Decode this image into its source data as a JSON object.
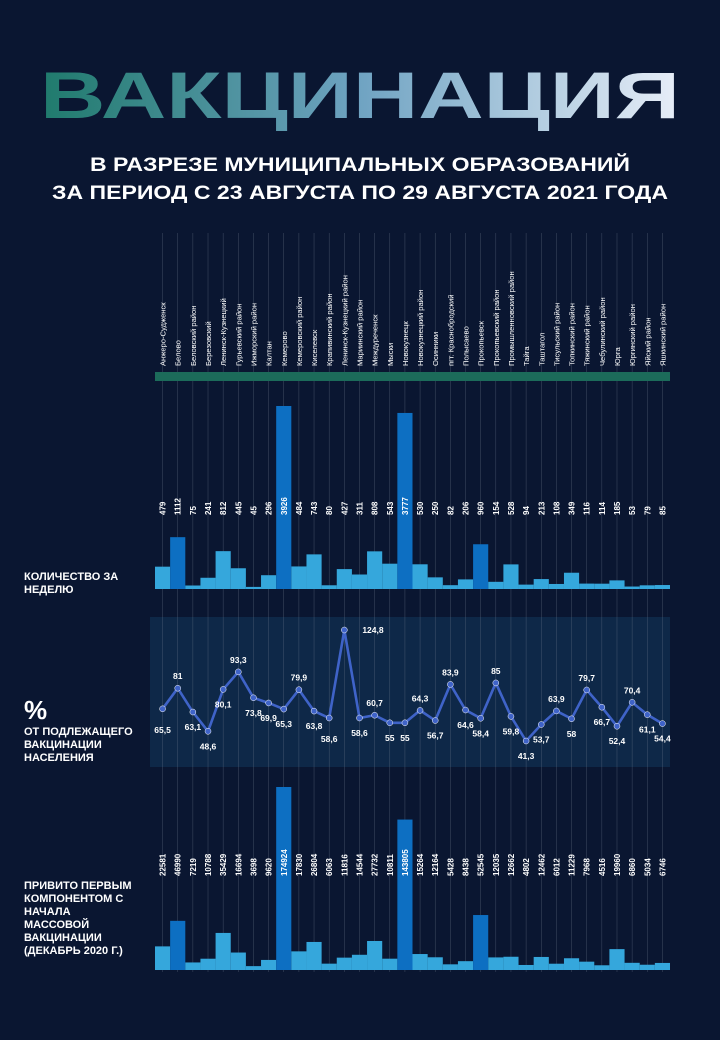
{
  "title": "ВАКЦИНАЦИЯ",
  "subtitle": [
    "В РАЗРЕЗЕ МУНИЦИПАЛЬНЫХ ОБРАЗОВАНИЙ",
    "ЗА ПЕРИОД С 23 АВГУСТА ПО 29 АВГУСТА 2021 ГОДА"
  ],
  "colors": {
    "background": "#0a1631",
    "band_panel": "#0e2848",
    "divider_band": "#1c6b5a",
    "bar_light": "#35a7dc",
    "bar_dark": "#0d6fc2",
    "line": "#3f63c8",
    "title_gradient": [
      "#1f7a6c",
      "#6fa3c2",
      "#e8eef8"
    ]
  },
  "labels": {
    "weekly": "КОЛИЧЕСТВО ЗА НЕДЕЛЮ",
    "pct_sign": "%",
    "pct": "ОТ ПОДЛЕЖАЩЕГО ВАКЦИНАЦИИ НАСЕЛЕНИЯ",
    "total": "ПРИВИТО ПЕРВЫМ КОМПОНЕНТОМ С НАЧАЛА МАССОВОЙ ВАКЦИНАЦИИ (ДЕКАБРЬ 2020 Г.)"
  },
  "chart_data": [
    {
      "type": "bar",
      "categories": [
        "Анжеро-Судженск",
        "Белово",
        "Беловский район",
        "Березовский",
        "Ленинск-Кузнецкий",
        "Гурьевский район",
        "Ижморский район",
        "Калтан",
        "Кемерово",
        "Кемеровский район",
        "Киселевск",
        "Крапивинский район",
        "Ленинск-Кузнецкий район",
        "Мариинский район",
        "Междуреченск",
        "Мыски",
        "Новокузнецк",
        "Новокузнецкий район",
        "Осинники",
        "пгт. Краснобродский",
        "Полысаево",
        "Прокопьевск",
        "Прокопьевский район",
        "Промышленновский район",
        "Тайга",
        "Таштагол",
        "Тисульский район",
        "Топкинский район",
        "Тяжинский район",
        "Чебулинский район",
        "Юрга",
        "Юргинский район",
        "Яйский район",
        "Яшкинский район"
      ],
      "values": [
        479,
        1112,
        75,
        241,
        812,
        445,
        45,
        296,
        3926,
        484,
        743,
        80,
        427,
        311,
        808,
        543,
        3777,
        530,
        250,
        82,
        206,
        960,
        154,
        528,
        94,
        213,
        108,
        349,
        116,
        114,
        185,
        53,
        79,
        85
      ],
      "title": "КОЛИЧЕСТВО ЗА НЕДЕЛЮ"
    },
    {
      "type": "line",
      "categories": [
        "Анжеро-Судженск",
        "Белово",
        "Беловский район",
        "Березовский",
        "Ленинск-Кузнецкий",
        "Гурьевский район",
        "Ижморский район",
        "Калтан",
        "Кемерово",
        "Кемеровский район",
        "Киселевск",
        "Крапивинский район",
        "Ленинск-Кузнецкий район",
        "Мариинский район",
        "Междуреченск",
        "Мыски",
        "Новокузнецк",
        "Новокузнецкий район",
        "Осинники",
        "пгт. Краснобродский",
        "Полысаево",
        "Прокопьевск",
        "Прокопьевский район",
        "Промышленновский район",
        "Тайга",
        "Таштагол",
        "Тисульский район",
        "Топкинский район",
        "Тяжинский район",
        "Чебулинский район",
        "Юрга",
        "Юргинский район",
        "Яйский район",
        "Яшкинский район"
      ],
      "values": [
        65.5,
        81,
        63.1,
        48.6,
        80.1,
        93.3,
        73.8,
        69.9,
        65.3,
        79.9,
        63.8,
        58.6,
        124.8,
        58.6,
        60.7,
        55,
        55,
        64.3,
        56.7,
        83.9,
        64.6,
        58.4,
        85,
        59.8,
        41.3,
        53.7,
        63.9,
        58,
        79.7,
        66.7,
        52.4,
        70.4,
        61.1,
        54.4
      ],
      "value_labels": [
        "65,5",
        "81",
        "63,1",
        "48,6",
        "80,1",
        "93,3",
        "73,8",
        "69,9",
        "65,3",
        "79,9",
        "63,8",
        "58,6",
        "124,8",
        "58,6",
        "60,7",
        "55",
        "55",
        "64,3",
        "56,7",
        "83,9",
        "64,6",
        "58,4",
        "85",
        "59,8",
        "41,3",
        "53,7",
        "63,9",
        "58",
        "79,7",
        "66,7",
        "52,4",
        "70,4",
        "61,1",
        "54,4"
      ],
      "title": "% ОТ ПОДЛЕЖАЩЕГО ВАКЦИНАЦИИ НАСЕЛЕНИЯ"
    },
    {
      "type": "bar",
      "categories": [
        "Анжеро-Судженск",
        "Белово",
        "Беловский район",
        "Березовский",
        "Ленинск-Кузнецкий",
        "Гурьевский район",
        "Ижморский район",
        "Калтан",
        "Кемерово",
        "Кемеровский район",
        "Киселевск",
        "Крапивинский район",
        "Ленинск-Кузнецкий район",
        "Мариинский район",
        "Междуреченск",
        "Мыски",
        "Новокузнецк",
        "Новокузнецкий район",
        "Осинники",
        "пгт. Краснобродский",
        "Полысаево",
        "Прокопьевск",
        "Прокопьевский район",
        "Промышленновский район",
        "Тайга",
        "Таштагол",
        "Тисульский район",
        "Топкинский район",
        "Тяжинский район",
        "Чебулинский район",
        "Юрга",
        "Юргинский район",
        "Яйский район",
        "Яшкинский район"
      ],
      "values": [
        22581,
        46990,
        7219,
        10788,
        35429,
        16694,
        3698,
        9620,
        174924,
        17830,
        26804,
        6063,
        11816,
        14544,
        27732,
        10811,
        143805,
        15264,
        12164,
        5428,
        8438,
        52545,
        12035,
        12662,
        4802,
        12462,
        6012,
        11229,
        7968,
        4516,
        19960,
        6860,
        5034,
        6746
      ],
      "title": "ПРИВИТО ПЕРВЫМ КОМПОНЕНТОМ С НАЧАЛА МАССОВОЙ ВАКЦИНАЦИИ (ДЕКАБРЬ 2020 Г.)"
    }
  ]
}
